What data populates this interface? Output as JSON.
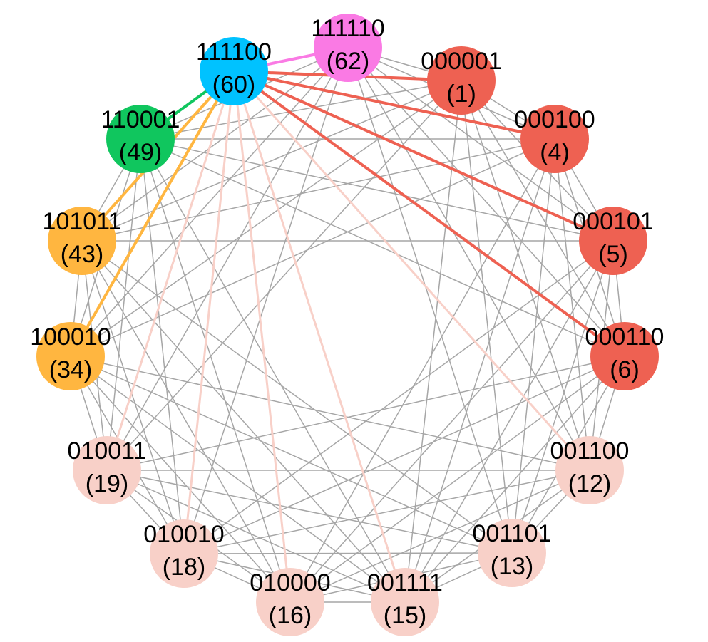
{
  "colors": {
    "background": "#ffffff",
    "gray_edge": "#a6a6a6",
    "red": "#ee6152",
    "pink": "#f8d0c8",
    "orange": "#ffb640",
    "green": "#10c65e",
    "cyan": "#00c2ff",
    "magenta": "#fa7ae4"
  },
  "nodes": [
    {
      "id": "62",
      "bin": "111110",
      "num": "(62)",
      "color": "magenta"
    },
    {
      "id": "1",
      "bin": "000001",
      "num": "(1)",
      "color": "red"
    },
    {
      "id": "4",
      "bin": "000100",
      "num": "(4)",
      "color": "red"
    },
    {
      "id": "5",
      "bin": "000101",
      "num": "(5)",
      "color": "red"
    },
    {
      "id": "6",
      "bin": "000110",
      "num": "(6)",
      "color": "red"
    },
    {
      "id": "12",
      "bin": "001100",
      "num": "(12)",
      "color": "pink"
    },
    {
      "id": "13",
      "bin": "001101",
      "num": "(13)",
      "color": "pink"
    },
    {
      "id": "15",
      "bin": "001111",
      "num": "(15)",
      "color": "pink"
    },
    {
      "id": "16",
      "bin": "010000",
      "num": "(16)",
      "color": "pink"
    },
    {
      "id": "18",
      "bin": "010010",
      "num": "(18)",
      "color": "pink"
    },
    {
      "id": "19",
      "bin": "010011",
      "num": "(19)",
      "color": "pink"
    },
    {
      "id": "34",
      "bin": "100010",
      "num": "(34)",
      "color": "orange"
    },
    {
      "id": "43",
      "bin": "101011",
      "num": "(43)",
      "color": "orange"
    },
    {
      "id": "49",
      "bin": "110001",
      "num": "(49)",
      "color": "green"
    },
    {
      "id": "60",
      "bin": "111100",
      "num": "(60)",
      "color": "cyan"
    }
  ],
  "highlight_edges": [
    {
      "from": "60",
      "to": "62",
      "color": "magenta"
    },
    {
      "from": "60",
      "to": "1",
      "color": "red"
    },
    {
      "from": "60",
      "to": "4",
      "color": "red"
    },
    {
      "from": "60",
      "to": "5",
      "color": "red"
    },
    {
      "from": "60",
      "to": "6",
      "color": "red"
    },
    {
      "from": "60",
      "to": "12",
      "color": "pink"
    },
    {
      "from": "60",
      "to": "15",
      "color": "pink"
    },
    {
      "from": "60",
      "to": "16",
      "color": "pink"
    },
    {
      "from": "60",
      "to": "18",
      "color": "pink"
    },
    {
      "from": "60",
      "to": "19",
      "color": "pink"
    },
    {
      "from": "60",
      "to": "49",
      "color": "green"
    },
    {
      "from": "60",
      "to": "43",
      "color": "orange"
    },
    {
      "from": "60",
      "to": "34",
      "color": "orange"
    }
  ]
}
